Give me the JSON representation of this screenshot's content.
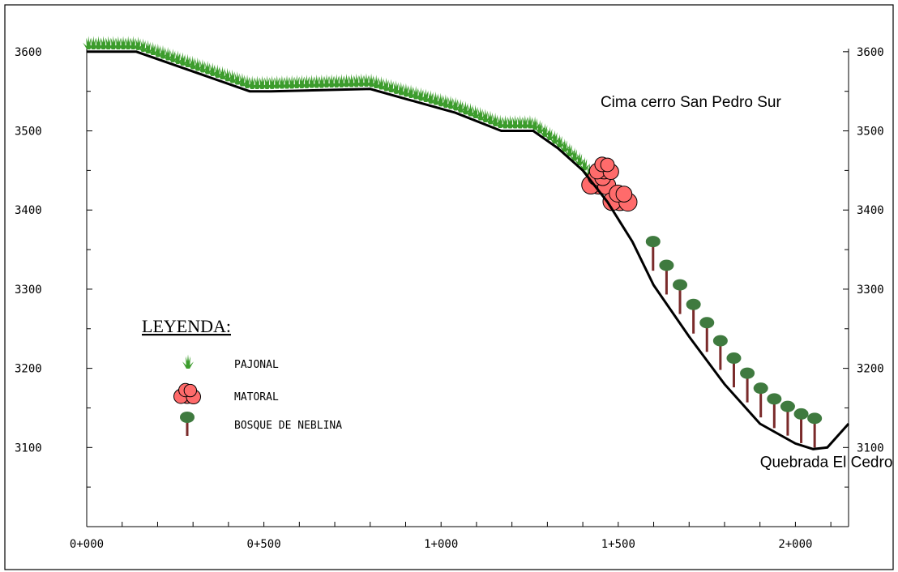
{
  "annotations": [
    {
      "text": "Cima cerro San Pedro Sur",
      "x": 1450,
      "y": 3530
    },
    {
      "text": "Quebrada El Cedro",
      "x": 1900,
      "y": 3075
    }
  ],
  "legend": {
    "title": "LEYENDA:",
    "items": [
      {
        "key": "pajonal",
        "label": "PAJONAL",
        "icon": "grass-icon"
      },
      {
        "key": "matoral",
        "label": "MATORAL",
        "icon": "shrub-icon"
      },
      {
        "key": "bosque",
        "label": "BOSQUE DE NEBLINA",
        "icon": "tree-icon"
      }
    ]
  },
  "colors": {
    "grass": "#3c9c2c",
    "shrub": "#ff6b6b",
    "tree_crown": "#3f7a3f",
    "trunk": "#7a2a2a",
    "terrain": "#000000"
  },
  "chart_data": {
    "type": "line",
    "xlabel": "",
    "ylabel": "",
    "xlim": [
      0,
      2150
    ],
    "ylim": [
      3000,
      3650
    ],
    "x_ticks": [
      0,
      500,
      1000,
      1500,
      2000
    ],
    "x_tick_labels": [
      "0+000",
      "0+500",
      "1+000",
      "1+500",
      "2+000"
    ],
    "y_ticks": [
      3100,
      3200,
      3300,
      3400,
      3500,
      3600
    ],
    "y_tick_labels": [
      "3100",
      "3200",
      "3300",
      "3400",
      "3500",
      "3600"
    ],
    "series": [
      {
        "x": [
          0,
          140,
          460,
          520,
          800,
          1040,
          1170,
          1260,
          1330,
          1400,
          1470,
          1540,
          1600,
          1700,
          1800,
          1900,
          2000,
          2050,
          2090,
          2150
        ],
        "y": [
          3600,
          3600,
          3550,
          3550,
          3553,
          3523,
          3500,
          3500,
          3478,
          3450,
          3410,
          3360,
          3305,
          3240,
          3180,
          3130,
          3105,
          3098,
          3100,
          3130
        ]
      }
    ],
    "vegetation": {
      "pajonal_range": [
        0,
        1450
      ],
      "matoral_range": [
        1440,
        1540
      ],
      "bosque_range": [
        1550,
        2060
      ]
    }
  }
}
